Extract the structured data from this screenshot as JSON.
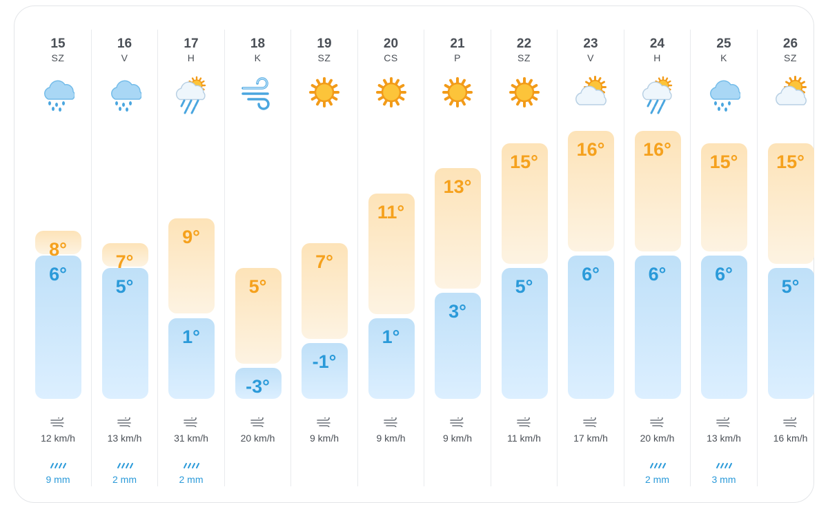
{
  "colors": {
    "max_temp": "#f5a11d",
    "min_temp": "#2b9ad9",
    "text": "#4a4f56",
    "rain": "#2b9ad9"
  },
  "days": [
    {
      "day": "15",
      "dow": "SZ",
      "icon": "rain-cloud-icon",
      "max": "8°",
      "min": "6°",
      "wind": "12 km/h",
      "rain": "9 mm"
    },
    {
      "day": "16",
      "dow": "V",
      "icon": "rain-cloud-icon",
      "max": "7°",
      "min": "5°",
      "wind": "13 km/h",
      "rain": "2 mm"
    },
    {
      "day": "17",
      "dow": "H",
      "icon": "sun-rain-cloud-icon",
      "max": "9°",
      "min": "1°",
      "wind": "31 km/h",
      "rain": "2 mm"
    },
    {
      "day": "18",
      "dow": "K",
      "icon": "wind-icon",
      "max": "5°",
      "min": "-3°",
      "wind": "20 km/h",
      "rain": null
    },
    {
      "day": "19",
      "dow": "SZ",
      "icon": "sun-icon",
      "max": "7°",
      "min": "-1°",
      "wind": "9 km/h",
      "rain": null
    },
    {
      "day": "20",
      "dow": "CS",
      "icon": "sun-icon",
      "max": "11°",
      "min": "1°",
      "wind": "9 km/h",
      "rain": null
    },
    {
      "day": "21",
      "dow": "P",
      "icon": "sun-icon",
      "max": "13°",
      "min": "3°",
      "wind": "9 km/h",
      "rain": null
    },
    {
      "day": "22",
      "dow": "SZ",
      "icon": "sun-icon",
      "max": "15°",
      "min": "5°",
      "wind": "11 km/h",
      "rain": null
    },
    {
      "day": "23",
      "dow": "V",
      "icon": "sun-cloud-icon",
      "max": "16°",
      "min": "6°",
      "wind": "17 km/h",
      "rain": null
    },
    {
      "day": "24",
      "dow": "H",
      "icon": "sun-rain-cloud-icon",
      "max": "16°",
      "min": "6°",
      "wind": "20 km/h",
      "rain": "2 mm"
    },
    {
      "day": "25",
      "dow": "K",
      "icon": "rain-cloud-icon",
      "max": "15°",
      "min": "6°",
      "wind": "13 km/h",
      "rain": "3 mm"
    },
    {
      "day": "26",
      "dow": "SZ",
      "icon": "sun-cloud-icon",
      "max": "15°",
      "min": "5°",
      "wind": "16 km/h",
      "rain": null
    }
  ]
}
